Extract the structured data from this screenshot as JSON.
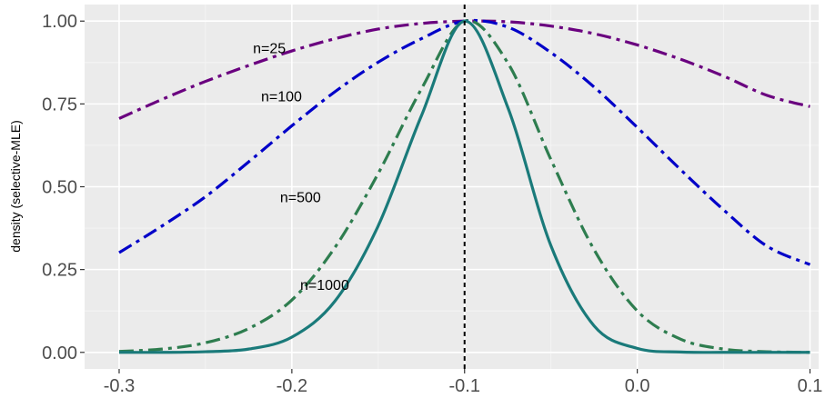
{
  "chart_data": {
    "type": "line",
    "title": "",
    "xlabel": "",
    "ylabel": "density (selective-MLE)",
    "xlim": [
      -0.32,
      0.105
    ],
    "ylim": [
      -0.05,
      1.05
    ],
    "x_ticks": [
      -0.3,
      -0.2,
      -0.1,
      0.0,
      0.1
    ],
    "x_tick_labels": [
      "-0.3",
      "-0.2",
      "-0.1",
      "0.0",
      "0.1"
    ],
    "y_ticks": [
      0.0,
      0.25,
      0.5,
      0.75,
      1.0
    ],
    "y_tick_labels": [
      "0.00",
      "0.25",
      "0.50",
      "0.75",
      "1.00"
    ],
    "grid": true,
    "reference_line": {
      "x": -0.1,
      "style": "dashed",
      "color": "#000000"
    },
    "series": [
      {
        "label": "n=25",
        "color": "#6a007f",
        "dash": "dashdot",
        "x": [
          -0.3,
          -0.275,
          -0.25,
          -0.225,
          -0.2,
          -0.175,
          -0.15,
          -0.125,
          -0.1,
          -0.075,
          -0.05,
          -0.025,
          0.0,
          0.025,
          0.05,
          0.075,
          0.1
        ],
        "y": [
          0.706,
          0.764,
          0.818,
          0.866,
          0.91,
          0.947,
          0.976,
          0.993,
          1.0,
          0.998,
          0.985,
          0.962,
          0.928,
          0.885,
          0.834,
          0.776,
          0.742
        ],
        "label_at": {
          "x": -0.213,
          "y": 0.92
        }
      },
      {
        "label": "n=100",
        "color": "#0000c8",
        "dash": "dashdot",
        "x": [
          -0.3,
          -0.275,
          -0.25,
          -0.225,
          -0.2,
          -0.175,
          -0.15,
          -0.125,
          -0.1,
          -0.075,
          -0.05,
          -0.025,
          0.0,
          0.025,
          0.05,
          0.075,
          0.1
        ],
        "y": [
          0.301,
          0.382,
          0.47,
          0.575,
          0.684,
          0.787,
          0.876,
          0.947,
          1.0,
          0.982,
          0.905,
          0.801,
          0.679,
          0.552,
          0.43,
          0.321,
          0.265
        ],
        "label_at": {
          "x": -0.206,
          "y": 0.775
        }
      },
      {
        "label": "n=500",
        "color": "#2e7d4f",
        "dash": "dashdot",
        "x": [
          -0.3,
          -0.275,
          -0.25,
          -0.225,
          -0.2,
          -0.175,
          -0.15,
          -0.125,
          -0.1,
          -0.075,
          -0.05,
          -0.025,
          0.0,
          0.025,
          0.05,
          0.075,
          0.1
        ],
        "y": [
          0.003,
          0.01,
          0.029,
          0.072,
          0.158,
          0.317,
          0.54,
          0.795,
          1.0,
          0.874,
          0.582,
          0.31,
          0.125,
          0.04,
          0.01,
          0.002,
          0.0
        ],
        "label_at": {
          "x": -0.195,
          "y": 0.47
        }
      },
      {
        "label": "n=1000",
        "color": "#1a7a7a",
        "dash": "solid",
        "x": [
          -0.3,
          -0.275,
          -0.25,
          -0.225,
          -0.2,
          -0.175,
          -0.15,
          -0.125,
          -0.1,
          -0.075,
          -0.05,
          -0.025,
          0.0,
          0.025,
          0.05,
          0.075,
          0.1
        ],
        "y": [
          0.0,
          0.0,
          0.002,
          0.01,
          0.046,
          0.155,
          0.382,
          0.714,
          1.0,
          0.74,
          0.322,
          0.08,
          0.012,
          0.001,
          0.0,
          0.0,
          0.0
        ],
        "label_at": {
          "x": -0.181,
          "y": 0.205
        }
      }
    ]
  }
}
